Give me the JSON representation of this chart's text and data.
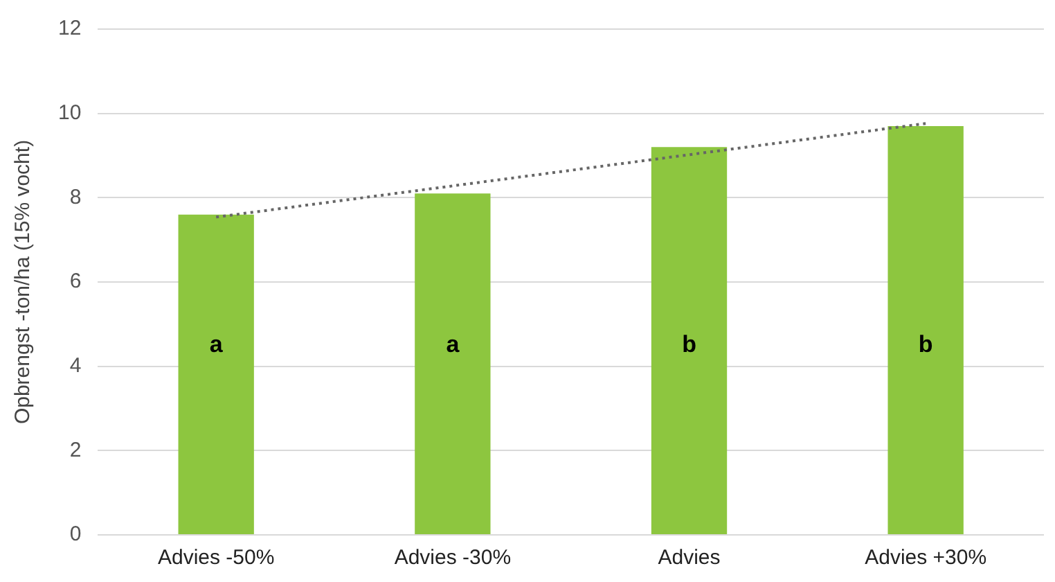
{
  "chart_data": {
    "type": "bar",
    "ylabel": "Opbrengst -ton/ha (15% vocht)",
    "categories": [
      "Advies -50%",
      "Advies -30%",
      "Advies",
      "Advies +30%"
    ],
    "series": [
      {
        "color": "#8dc63f",
        "values": [
          7.6,
          8.1,
          9.2,
          9.7
        ]
      },
      {
        "type": "line",
        "color": "#666666",
        "line_style": "dotted",
        "marker": "none",
        "x": [
          "Advies -50%",
          "Advies +30%"
        ],
        "values": [
          7.54,
          9.76
        ]
      }
    ],
    "ylim": [
      0,
      12
    ],
    "yticks": [
      0,
      2,
      4,
      6,
      8,
      10,
      12
    ],
    "grid": "y",
    "legend": false,
    "annotations": [
      "a",
      "a",
      "b",
      "b"
    ]
  }
}
